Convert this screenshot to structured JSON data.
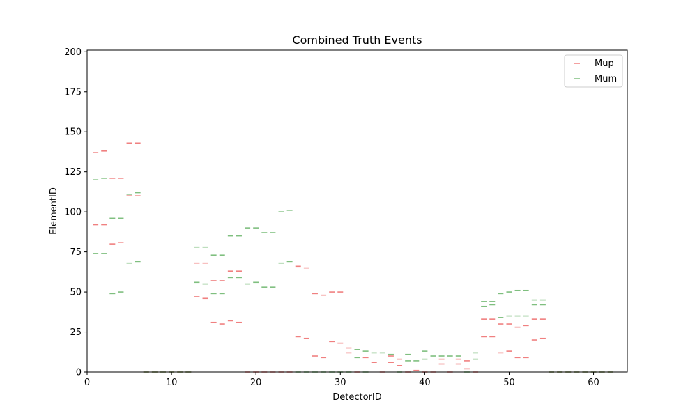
{
  "chart_data": {
    "type": "scatter",
    "marker": "horizontal-dash",
    "title": "Combined Truth Events",
    "xlabel": "DetectorID",
    "ylabel": "ElementID",
    "xlim": [
      0,
      64
    ],
    "ylim": [
      0,
      201
    ],
    "xticks": [
      0,
      10,
      20,
      30,
      40,
      50,
      60
    ],
    "yticks": [
      0,
      25,
      50,
      75,
      100,
      125,
      150,
      175,
      200
    ],
    "grid": false,
    "legend_position": "top-right",
    "series": [
      {
        "name": "Mup",
        "color": "#f08080",
        "points": [
          [
            1,
            137
          ],
          [
            2,
            138
          ],
          [
            3,
            121
          ],
          [
            4,
            121
          ],
          [
            5,
            143
          ],
          [
            6,
            143
          ],
          [
            1,
            92
          ],
          [
            2,
            92
          ],
          [
            3,
            80
          ],
          [
            4,
            81
          ],
          [
            5,
            110
          ],
          [
            6,
            110
          ],
          [
            7,
            0
          ],
          [
            8,
            0
          ],
          [
            9,
            0
          ],
          [
            10,
            0
          ],
          [
            11,
            0
          ],
          [
            12,
            0
          ],
          [
            13,
            68
          ],
          [
            14,
            68
          ],
          [
            13,
            47
          ],
          [
            14,
            46
          ],
          [
            15,
            31
          ],
          [
            16,
            30
          ],
          [
            15,
            57
          ],
          [
            16,
            57
          ],
          [
            17,
            63
          ],
          [
            18,
            63
          ],
          [
            17,
            32
          ],
          [
            18,
            31
          ],
          [
            19,
            0
          ],
          [
            20,
            0
          ],
          [
            21,
            0
          ],
          [
            22,
            0
          ],
          [
            23,
            0
          ],
          [
            24,
            0
          ],
          [
            25,
            22
          ],
          [
            26,
            21
          ],
          [
            25,
            66
          ],
          [
            26,
            65
          ],
          [
            27,
            49
          ],
          [
            28,
            48
          ],
          [
            27,
            10
          ],
          [
            28,
            9
          ],
          [
            29,
            50
          ],
          [
            30,
            50
          ],
          [
            29,
            19
          ],
          [
            30,
            18
          ],
          [
            31,
            15
          ],
          [
            31,
            12
          ],
          [
            32,
            0
          ],
          [
            33,
            9
          ],
          [
            34,
            6
          ],
          [
            35,
            0
          ],
          [
            36,
            10
          ],
          [
            36,
            6
          ],
          [
            37,
            8
          ],
          [
            37,
            4
          ],
          [
            38,
            0
          ],
          [
            39,
            1
          ],
          [
            40,
            0
          ],
          [
            41,
            0
          ],
          [
            42,
            8
          ],
          [
            42,
            5
          ],
          [
            43,
            0
          ],
          [
            44,
            8
          ],
          [
            44,
            5
          ],
          [
            45,
            7
          ],
          [
            45,
            2
          ],
          [
            46,
            0
          ],
          [
            47,
            33
          ],
          [
            48,
            33
          ],
          [
            47,
            22
          ],
          [
            48,
            22
          ],
          [
            49,
            30
          ],
          [
            50,
            30
          ],
          [
            49,
            12
          ],
          [
            50,
            13
          ],
          [
            51,
            28
          ],
          [
            52,
            29
          ],
          [
            51,
            9
          ],
          [
            52,
            9
          ],
          [
            53,
            33
          ],
          [
            54,
            33
          ],
          [
            53,
            20
          ],
          [
            54,
            21
          ],
          [
            55,
            0
          ],
          [
            56,
            0
          ],
          [
            57,
            0
          ],
          [
            58,
            0
          ],
          [
            59,
            0
          ],
          [
            60,
            0
          ],
          [
            61,
            0
          ],
          [
            62,
            0
          ]
        ]
      },
      {
        "name": "Mum",
        "color": "#7fbf7f",
        "points": [
          [
            1,
            120
          ],
          [
            2,
            121
          ],
          [
            3,
            96
          ],
          [
            4,
            96
          ],
          [
            5,
            111
          ],
          [
            6,
            112
          ],
          [
            1,
            74
          ],
          [
            2,
            74
          ],
          [
            3,
            49
          ],
          [
            4,
            50
          ],
          [
            5,
            68
          ],
          [
            6,
            69
          ],
          [
            7,
            0
          ],
          [
            8,
            0
          ],
          [
            9,
            0
          ],
          [
            10,
            0
          ],
          [
            11,
            0
          ],
          [
            12,
            0
          ],
          [
            13,
            78
          ],
          [
            14,
            78
          ],
          [
            13,
            56
          ],
          [
            14,
            55
          ],
          [
            15,
            73
          ],
          [
            16,
            73
          ],
          [
            15,
            49
          ],
          [
            16,
            49
          ],
          [
            17,
            85
          ],
          [
            18,
            85
          ],
          [
            17,
            59
          ],
          [
            18,
            59
          ],
          [
            19,
            90
          ],
          [
            20,
            90
          ],
          [
            19,
            55
          ],
          [
            20,
            56
          ],
          [
            21,
            87
          ],
          [
            22,
            87
          ],
          [
            21,
            53
          ],
          [
            22,
            53
          ],
          [
            23,
            100
          ],
          [
            24,
            101
          ],
          [
            23,
            68
          ],
          [
            24,
            69
          ],
          [
            25,
            0
          ],
          [
            26,
            0
          ],
          [
            27,
            0
          ],
          [
            28,
            0
          ],
          [
            29,
            0
          ],
          [
            30,
            0
          ],
          [
            31,
            0
          ],
          [
            32,
            14
          ],
          [
            32,
            9
          ],
          [
            33,
            13
          ],
          [
            33,
            0
          ],
          [
            34,
            12
          ],
          [
            35,
            12
          ],
          [
            36,
            11
          ],
          [
            37,
            0
          ],
          [
            38,
            11
          ],
          [
            38,
            7
          ],
          [
            39,
            7
          ],
          [
            40,
            13
          ],
          [
            40,
            8
          ],
          [
            41,
            10
          ],
          [
            42,
            10
          ],
          [
            43,
            10
          ],
          [
            44,
            10
          ],
          [
            45,
            0
          ],
          [
            46,
            12
          ],
          [
            46,
            8
          ],
          [
            47,
            44
          ],
          [
            48,
            44
          ],
          [
            47,
            41
          ],
          [
            48,
            42
          ],
          [
            49,
            49
          ],
          [
            50,
            50
          ],
          [
            49,
            34
          ],
          [
            50,
            35
          ],
          [
            51,
            51
          ],
          [
            52,
            51
          ],
          [
            51,
            35
          ],
          [
            52,
            35
          ],
          [
            53,
            45
          ],
          [
            54,
            45
          ],
          [
            53,
            42
          ],
          [
            54,
            42
          ],
          [
            55,
            0
          ],
          [
            56,
            0
          ],
          [
            57,
            0
          ],
          [
            58,
            0
          ],
          [
            59,
            0
          ],
          [
            60,
            0
          ],
          [
            61,
            0
          ],
          [
            62,
            0
          ]
        ]
      }
    ]
  }
}
